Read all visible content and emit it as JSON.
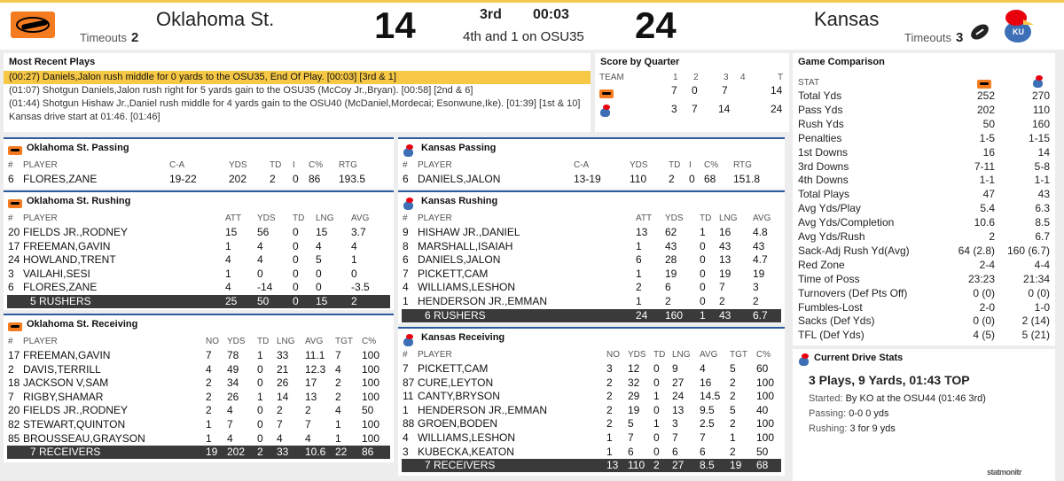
{
  "header": {
    "away": {
      "name": "Oklahoma St.",
      "timeouts_label": "Timeouts",
      "timeouts": "2",
      "score": "14"
    },
    "home": {
      "name": "Kansas",
      "timeouts_label": "Timeouts",
      "timeouts": "3",
      "score": "24"
    },
    "quarter": "3rd",
    "clock": "00:03",
    "down_distance": "4th and 1 on OSU35"
  },
  "plays": {
    "title": "Most Recent Plays",
    "items": [
      "(00:27) Daniels,Jalon rush middle for 0 yards to the OSU35, End Of Play. [00:03] [3rd & 1]",
      "(01:07) Shotgun Daniels,Jalon rush right for 5 yards gain to the OSU35 (McCoy Jr.,Bryan). [00:58] [2nd & 6]",
      "(01:44) Shotgun Hishaw Jr.,Daniel rush middle for 4 yards gain to the OSU40 (McDaniel,Mordecai; Esonwune,Ike). [01:39] [1st & 10]",
      "Kansas drive start at 01:46. [01:46]"
    ]
  },
  "score_by_quarter": {
    "title": "Score by Quarter",
    "headers": [
      "TEAM",
      "1",
      "2",
      "3",
      "4",
      "T"
    ],
    "rows": [
      [
        "7",
        "0",
        "7",
        "",
        "14"
      ],
      [
        "3",
        "7",
        "14",
        "",
        "24"
      ]
    ]
  },
  "game_comparison": {
    "title": "Game Comparison",
    "stat_label": "STAT",
    "rows": [
      [
        "Total Yds",
        "252",
        "270"
      ],
      [
        "Pass Yds",
        "202",
        "110"
      ],
      [
        "Rush Yds",
        "50",
        "160"
      ],
      [
        "Penalties",
        "1-5",
        "1-15"
      ],
      [
        "1st Downs",
        "16",
        "14"
      ],
      [
        "3rd Downs",
        "7-11",
        "5-8"
      ],
      [
        "4th Downs",
        "1-1",
        "1-1"
      ],
      [
        "Total Plays",
        "47",
        "43"
      ],
      [
        "Avg Yds/Play",
        "5.4",
        "6.3"
      ],
      [
        "Avg Yds/Completion",
        "10.6",
        "8.5"
      ],
      [
        "Avg Yds/Rush",
        "2",
        "6.7"
      ],
      [
        "Sack-Adj Rush Yd(Avg)",
        "64 (2.8)",
        "160 (6.7)"
      ],
      [
        "Red Zone",
        "2-4",
        "4-4"
      ],
      [
        "Time of Poss",
        "23:23",
        "21:34"
      ],
      [
        "Turnovers (Def Pts Off)",
        "0 (0)",
        "0 (0)"
      ],
      [
        "Fumbles-Lost",
        "2-0",
        "1-0"
      ],
      [
        "Sacks (Def Yds)",
        "0 (0)",
        "2 (14)"
      ],
      [
        "TFL (Def Yds)",
        "4 (5)",
        "5 (21)"
      ]
    ]
  },
  "current_drive": {
    "title": "Current Drive Stats",
    "summary": "3 Plays, 9 Yards, 01:43 TOP",
    "started_label": "Started:",
    "started": "By KO at the OSU44 (01:46 3rd)",
    "passing_label": "Passing:",
    "passing": "0-0 0 yds",
    "rushing_label": "Rushing:",
    "rushing": "3 for 9 yds"
  },
  "osu_passing": {
    "title": "Oklahoma St. Passing",
    "headers": [
      "#",
      "PLAYER",
      "C-A",
      "YDS",
      "TD",
      "I",
      "C%",
      "RTG"
    ],
    "rows": [
      [
        "6",
        "FLORES,ZANE",
        "19-22",
        "202",
        "2",
        "0",
        "86",
        "193.5"
      ]
    ]
  },
  "ku_passing": {
    "title": "Kansas Passing",
    "headers": [
      "#",
      "PLAYER",
      "C-A",
      "YDS",
      "TD",
      "I",
      "C%",
      "RTG"
    ],
    "rows": [
      [
        "6",
        "DANIELS,JALON",
        "13-19",
        "110",
        "2",
        "0",
        "68",
        "151.8"
      ]
    ]
  },
  "osu_rushing": {
    "title": "Oklahoma St. Rushing",
    "headers": [
      "#",
      "PLAYER",
      "ATT",
      "YDS",
      "TD",
      "LNG",
      "AVG"
    ],
    "rows": [
      [
        "20",
        "FIELDS JR.,RODNEY",
        "15",
        "56",
        "0",
        "15",
        "3.7"
      ],
      [
        "17",
        "FREEMAN,GAVIN",
        "1",
        "4",
        "0",
        "4",
        "4"
      ],
      [
        "24",
        "HOWLAND,TRENT",
        "4",
        "4",
        "0",
        "5",
        "1"
      ],
      [
        "3",
        "VAILAHI,SESI",
        "1",
        "0",
        "0",
        "0",
        "0"
      ],
      [
        "6",
        "FLORES,ZANE",
        "4",
        "-14",
        "0",
        "0",
        "-3.5"
      ]
    ],
    "total": [
      "5 RUSHERS",
      "25",
      "50",
      "0",
      "15",
      "2"
    ]
  },
  "ku_rushing": {
    "title": "Kansas Rushing",
    "headers": [
      "#",
      "PLAYER",
      "ATT",
      "YDS",
      "TD",
      "LNG",
      "AVG"
    ],
    "rows": [
      [
        "9",
        "HISHAW JR.,DANIEL",
        "13",
        "62",
        "1",
        "16",
        "4.8"
      ],
      [
        "8",
        "MARSHALL,ISAIAH",
        "1",
        "43",
        "0",
        "43",
        "43"
      ],
      [
        "6",
        "DANIELS,JALON",
        "6",
        "28",
        "0",
        "13",
        "4.7"
      ],
      [
        "7",
        "PICKETT,CAM",
        "1",
        "19",
        "0",
        "19",
        "19"
      ],
      [
        "4",
        "WILLIAMS,LESHON",
        "2",
        "6",
        "0",
        "7",
        "3"
      ],
      [
        "1",
        "HENDERSON JR.,EMMAN",
        "1",
        "2",
        "0",
        "2",
        "2"
      ]
    ],
    "total": [
      "6 RUSHERS",
      "24",
      "160",
      "1",
      "43",
      "6.7"
    ]
  },
  "osu_receiving": {
    "title": "Oklahoma St. Receiving",
    "headers": [
      "#",
      "PLAYER",
      "NO",
      "YDS",
      "TD",
      "LNG",
      "AVG",
      "TGT",
      "C%"
    ],
    "rows": [
      [
        "17",
        "FREEMAN,GAVIN",
        "7",
        "78",
        "1",
        "33",
        "11.1",
        "7",
        "100"
      ],
      [
        "2",
        "DAVIS,TERRILL",
        "4",
        "49",
        "0",
        "21",
        "12.3",
        "4",
        "100"
      ],
      [
        "18",
        "JACKSON V,SAM",
        "2",
        "34",
        "0",
        "26",
        "17",
        "2",
        "100"
      ],
      [
        "7",
        "RIGBY,SHAMAR",
        "2",
        "26",
        "1",
        "14",
        "13",
        "2",
        "100"
      ],
      [
        "20",
        "FIELDS JR.,RODNEY",
        "2",
        "4",
        "0",
        "2",
        "2",
        "4",
        "50"
      ],
      [
        "82",
        "STEWART,QUINTON",
        "1",
        "7",
        "0",
        "7",
        "7",
        "1",
        "100"
      ],
      [
        "85",
        "BROUSSEAU,GRAYSON",
        "1",
        "4",
        "0",
        "4",
        "4",
        "1",
        "100"
      ]
    ],
    "total": [
      "7 RECEIVERS",
      "19",
      "202",
      "2",
      "33",
      "10.6",
      "22",
      "86"
    ]
  },
  "ku_receiving": {
    "title": "Kansas Receiving",
    "headers": [
      "#",
      "PLAYER",
      "NO",
      "YDS",
      "TD",
      "LNG",
      "AVG",
      "TGT",
      "C%"
    ],
    "rows": [
      [
        "7",
        "PICKETT,CAM",
        "3",
        "12",
        "0",
        "9",
        "4",
        "5",
        "60"
      ],
      [
        "87",
        "CURE,LEYTON",
        "2",
        "32",
        "0",
        "27",
        "16",
        "2",
        "100"
      ],
      [
        "11",
        "CANTY,BRYSON",
        "2",
        "29",
        "1",
        "24",
        "14.5",
        "2",
        "100"
      ],
      [
        "1",
        "HENDERSON JR.,EMMAN",
        "2",
        "19",
        "0",
        "13",
        "9.5",
        "5",
        "40"
      ],
      [
        "88",
        "GROEN,BODEN",
        "2",
        "5",
        "1",
        "3",
        "2.5",
        "2",
        "100"
      ],
      [
        "4",
        "WILLIAMS,LESHON",
        "1",
        "7",
        "0",
        "7",
        "7",
        "1",
        "100"
      ],
      [
        "3",
        "KUBECKA,KEATON",
        "1",
        "6",
        "0",
        "6",
        "6",
        "2",
        "50"
      ]
    ],
    "total": [
      "7 RECEIVERS",
      "13",
      "110",
      "2",
      "27",
      "8.5",
      "19",
      "68"
    ]
  },
  "watermark": "statmonitr",
  "colors": {
    "osu_orange": "#f47b20",
    "ku_blue": "#2c5aa0",
    "highlight": "#f7c845",
    "total_row": "#3a3a3a"
  }
}
